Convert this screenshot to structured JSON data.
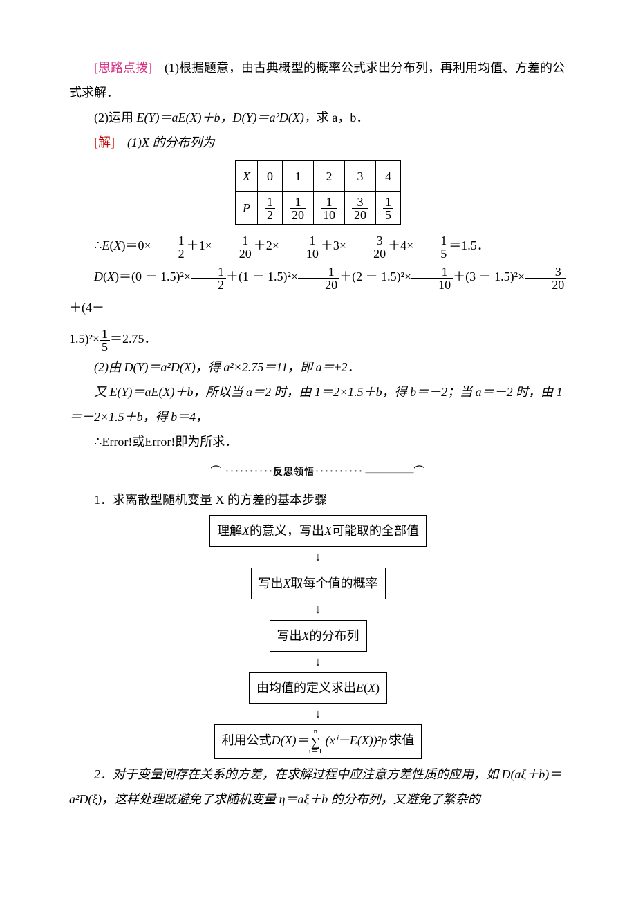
{
  "hint": {
    "label": "[思路点拨]",
    "part1": "(1)根据题意，由古典概型的概率公式求出分布列，再利用均值、方差的公式求解．",
    "part2_prefix": "(2)运用 ",
    "part2_formula": "E(Y)＝aE(X)＋b，D(Y)＝a²D(X)，",
    "part2_suffix": "求 a，b．"
  },
  "solution_label": "[解]",
  "sol1_intro": "(1)X 的分布列为",
  "dist_table": {
    "row_x_label": "X",
    "x_values": [
      "0",
      "1",
      "2",
      "3",
      "4"
    ],
    "row_p_label": "P",
    "p_fracs": [
      {
        "num": "1",
        "den": "2"
      },
      {
        "num": "1",
        "den": "20"
      },
      {
        "num": "1",
        "den": "10"
      },
      {
        "num": "3",
        "den": "20"
      },
      {
        "num": "1",
        "den": "5"
      }
    ]
  },
  "ex_calc": {
    "prefix": "∴",
    "terms": [
      {
        "coef": "0",
        "num": "1",
        "den": "2"
      },
      {
        "coef": "1",
        "num": "1",
        "den": "20"
      },
      {
        "coef": "2",
        "num": "1",
        "den": "10"
      },
      {
        "coef": "3",
        "num": "3",
        "den": "20"
      },
      {
        "coef": "4",
        "num": "1",
        "den": "5"
      }
    ],
    "result": "1.5"
  },
  "dx_calc": {
    "terms": [
      {
        "base": "(0 － 1.5)²",
        "num": "1",
        "den": "2"
      },
      {
        "base": "(1 － 1.5)²",
        "num": "1",
        "den": "20"
      },
      {
        "base": "(2 － 1.5)²",
        "num": "1",
        "den": "10"
      },
      {
        "base": "(3 － 1.5)²",
        "num": "3",
        "den": "20"
      },
      {
        "base": "(4 － 1.5)²",
        "num": "1",
        "den": "5"
      }
    ],
    "result": "2.75"
  },
  "sol2": {
    "line1": "(2)由 D(Y)＝a²D(X)，得 a²×2.75＝11，即 a＝±2．",
    "line2": "又 E(Y)＝aE(X)＋b，所以当 a＝2 时，由 1＝2×1.5＋b，得 b＝－2；当 a＝－2 时，由 1＝－2×1.5＋b，得 b＝4，",
    "line3": "∴Error!或Error!即为所求．"
  },
  "reflect_divider": {
    "left": "―――――",
    "dots_l": " ･･････････",
    "title": "反思领悟",
    "dots_r": "･･････････ ",
    "right": "―――――"
  },
  "reflect1_intro": "1．求离散型随机变量 X 的方差的基本步骤",
  "flow": {
    "b1_pre": "理解",
    "b1_mid": "的意义，写出",
    "b1_post": "可能取的全部值",
    "b2_pre": "写出",
    "b2_post": "取每个值的概率",
    "b3_pre": "写出",
    "b3_post": "的分布列",
    "b4": "由均值的定义求出",
    "b5_pre": "利用公式",
    "b5_eq_l": "D(X)＝",
    "b5_sum_top": "n",
    "b5_sum_bot": "i＝1",
    "b5_eq_r": " (xⁱ－E(X))²pⁱ",
    "b5_post": "求值"
  },
  "reflect2": {
    "p1": "2．对于变量间存在关系的方差，在求解过程中应注意方差性质的应用，如 D(aξ＋b)＝a²D(ξ)，这样处理既避免了求随机变量 η＝aξ＋b 的分布列，又避免了繁杂的"
  },
  "colors": {
    "hint_label": "#d63384",
    "solution_label": "#c00000",
    "text": "#000000",
    "background": "#ffffff"
  },
  "typography": {
    "base_fontsize_pt": 14,
    "line_height": 2.0,
    "font_family_cn": "SimSun",
    "font_family_math": "Times New Roman"
  }
}
